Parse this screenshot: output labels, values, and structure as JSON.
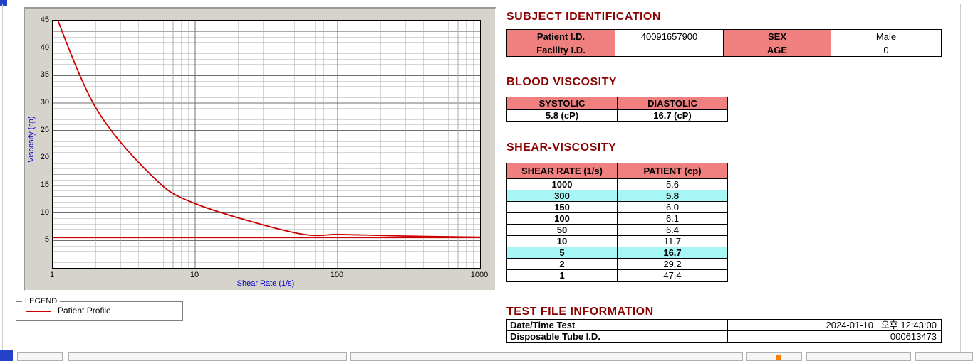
{
  "colors": {
    "accent_header": "#8B0000",
    "table_header_bg": "#F08080",
    "highlight_bg": "#A6F6F6",
    "curve": "#CC0000",
    "axis_label": "#0000C8",
    "taskbar_blue": "#2342C8",
    "status_orange": "#FF8000"
  },
  "subject_identification": {
    "title": "SUBJECT IDENTIFICATION",
    "rows": [
      {
        "label1": "Patient I.D.",
        "value1": "40091657900",
        "label2": "SEX",
        "value2": "Male"
      },
      {
        "label1": "Facility I.D.",
        "value1": "",
        "label2": "AGE",
        "value2": "0"
      }
    ]
  },
  "blood_viscosity": {
    "title": "BLOOD VISCOSITY",
    "headers": [
      "SYSTOLIC",
      "DIASTOLIC"
    ],
    "values": [
      "5.8 (cP)",
      "16.7 (cP)"
    ]
  },
  "shear_viscosity": {
    "title": "SHEAR-VISCOSITY",
    "headers": [
      "SHEAR RATE (1/s)",
      "PATIENT (cp)"
    ],
    "rows": [
      {
        "rate": "1000",
        "patient": "5.6",
        "highlight": false
      },
      {
        "rate": "300",
        "patient": "5.8",
        "highlight": true
      },
      {
        "rate": "150",
        "patient": "6.0",
        "highlight": false
      },
      {
        "rate": "100",
        "patient": "6.1",
        "highlight": false
      },
      {
        "rate": "50",
        "patient": "6.4",
        "highlight": false
      },
      {
        "rate": "10",
        "patient": "11.7",
        "highlight": false
      },
      {
        "rate": "5",
        "patient": "16.7",
        "highlight": true
      },
      {
        "rate": "2",
        "patient": "29.2",
        "highlight": false
      },
      {
        "rate": "1",
        "patient": "47.4",
        "highlight": false
      }
    ]
  },
  "test_file_information": {
    "title": "TEST FILE INFORMATION",
    "rows": [
      {
        "label": "Date/Time Test",
        "value": "2024-01-10   오후 12:43:00"
      },
      {
        "label": "Disposable Tube I.D.",
        "value": "000613473"
      }
    ]
  },
  "legend": {
    "box_label": "LEGEND",
    "entry": "Patient Profile"
  },
  "chart_data": {
    "type": "line",
    "title": "",
    "xlabel": "Shear Rate (1/s)",
    "ylabel": "Viscosity (cp)",
    "x_scale": "log",
    "xlim": [
      1,
      1000
    ],
    "ylim": [
      0,
      45
    ],
    "x_ticks": [
      1,
      10,
      100,
      1000
    ],
    "y_ticks": [
      5,
      10,
      15,
      20,
      25,
      30,
      35,
      40,
      45
    ],
    "grid": true,
    "reference_line_y": 5.5,
    "legend_position": "below-left",
    "series": [
      {
        "name": "Patient Profile",
        "color": "#CC0000",
        "x": [
          1,
          2,
          5,
          10,
          50,
          100,
          150,
          300,
          1000
        ],
        "y": [
          47.4,
          29.2,
          16.7,
          11.7,
          6.4,
          6.1,
          6.0,
          5.8,
          5.6
        ]
      }
    ]
  }
}
